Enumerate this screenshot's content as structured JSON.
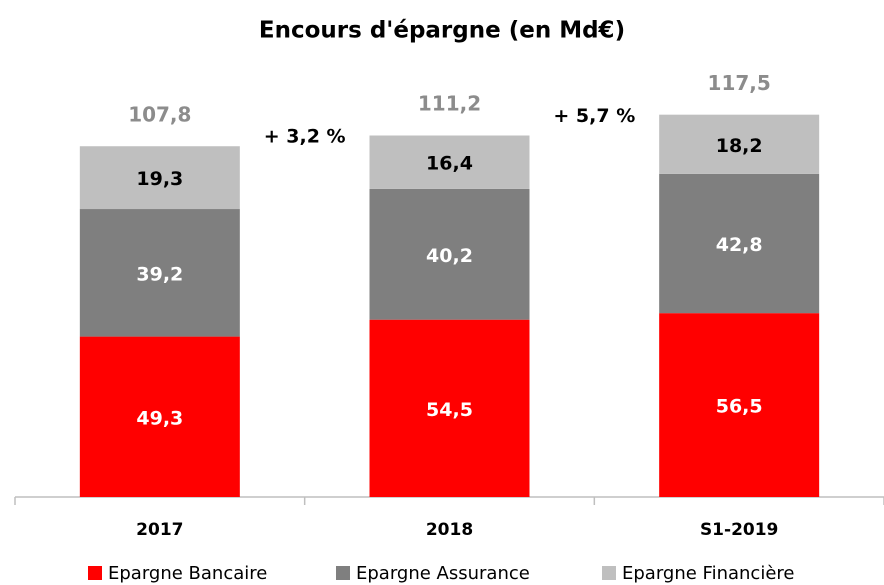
{
  "chart_data": {
    "type": "stacked_bar",
    "title": "Encours d'épargne (en Md€)",
    "categories": [
      "2017",
      "2018",
      "S1-2019"
    ],
    "series": [
      {
        "name": "Epargne Bancaire",
        "color": "#ff0000",
        "values": [
          49.3,
          54.5,
          56.5
        ],
        "value_labels": [
          "49,3",
          "54,5",
          "56,5"
        ]
      },
      {
        "name": "Epargne Assurance",
        "color": "#7f7f7f",
        "values": [
          39.2,
          40.2,
          42.8
        ],
        "value_labels": [
          "39,2",
          "40,2",
          "42,8"
        ]
      },
      {
        "name": "Epargne Financière",
        "color": "#bfbfbf",
        "values": [
          19.3,
          16.4,
          18.2
        ],
        "value_labels": [
          "19,3",
          "16,4",
          "18,2"
        ]
      }
    ],
    "totals": [
      107.8,
      111.2,
      117.5
    ],
    "total_labels": [
      "107,8",
      "111,2",
      "117,5"
    ],
    "annotations": [
      "+ 3,2 %",
      "+ 5,7 %"
    ],
    "ylim": [
      0,
      130
    ]
  }
}
